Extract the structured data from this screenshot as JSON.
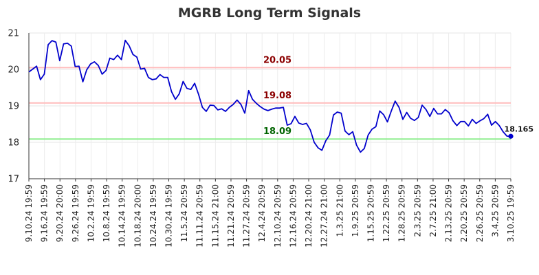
{
  "chart_data": {
    "type": "line",
    "title": "MGRB Long Term Signals",
    "ylim": [
      17,
      21
    ],
    "yticks": [
      "17",
      "18",
      "19",
      "20",
      "21"
    ],
    "x_tick_labels": [
      "9.10.24 19:59",
      "9.16.24 19:59",
      "9.20.24 20:00",
      "9.26.24 19:59",
      "10.2.24 19:59",
      "10.8.24 19:59",
      "10.14.24 19:59",
      "10.18.24 20:00",
      "10.24.24 19:59",
      "10.30.24 19:59",
      "11.5.24 20:59",
      "11.11.24 20:59",
      "11.15.24 21:00",
      "11.21.24 20:59",
      "11.27.24 20:59",
      "12.4.24 20:59",
      "12.10.24 20:59",
      "12.16.24 20:59",
      "12.20.24 21:00",
      "12.27.24 21:00",
      "1.3.25 21:00",
      "1.9.25 20:59",
      "1.15.25 20:59",
      "1.22.25 20:59",
      "1.28.25 20:59",
      "2.3.25 20:59",
      "2.7.25 21:00",
      "2.13.25 20:59",
      "2.20.25 20:59",
      "2.26.25 20:59",
      "3.4.25 20:59",
      "3.10.25 19:59"
    ],
    "grid": true,
    "legend": "none",
    "series": [
      {
        "color": "#0000cc",
        "values": [
          19.93,
          20.01,
          20.09,
          19.72,
          19.87,
          20.68,
          20.79,
          20.75,
          20.24,
          20.7,
          20.72,
          20.64,
          20.08,
          20.09,
          19.66,
          19.99,
          20.15,
          20.21,
          20.11,
          19.87,
          19.97,
          20.31,
          20.27,
          20.39,
          20.27,
          20.8,
          20.65,
          20.41,
          20.34,
          20.01,
          20.03,
          19.78,
          19.72,
          19.74,
          19.86,
          19.78,
          19.78,
          19.39,
          19.18,
          19.33,
          19.67,
          19.48,
          19.45,
          19.62,
          19.32,
          18.96,
          18.85,
          19.02,
          19.01,
          18.89,
          18.92,
          18.85,
          18.96,
          19.04,
          19.16,
          19.04,
          18.8,
          19.42,
          19.18,
          19.07,
          18.98,
          18.91,
          18.87,
          18.91,
          18.94,
          18.94,
          18.96,
          18.47,
          18.51,
          18.71,
          18.53,
          18.49,
          18.52,
          18.34,
          18.0,
          17.85,
          17.78,
          18.04,
          18.2,
          18.75,
          18.83,
          18.8,
          18.31,
          18.21,
          18.29,
          17.92,
          17.73,
          17.83,
          18.2,
          18.36,
          18.43,
          18.86,
          18.76,
          18.56,
          18.86,
          19.13,
          18.96,
          18.63,
          18.82,
          18.66,
          18.6,
          18.68,
          19.02,
          18.9,
          18.71,
          18.93,
          18.78,
          18.78,
          18.9,
          18.81,
          18.59,
          18.46,
          18.57,
          18.57,
          18.45,
          18.63,
          18.52,
          18.59,
          18.65,
          18.77,
          18.47,
          18.57,
          18.46,
          18.29,
          18.17,
          18.165
        ]
      }
    ],
    "reference_lines": [
      {
        "value": 20.05,
        "label": "20.05",
        "line_color": "#ffbbbb",
        "label_color": "#8b0000"
      },
      {
        "value": 19.08,
        "label": "19.08",
        "line_color": "#ffbbbb",
        "label_color": "#8b0000"
      },
      {
        "value": 18.09,
        "label": "18.09",
        "line_color": "#90ee90",
        "label_color": "#006400"
      }
    ],
    "last_value_label": "18.165"
  }
}
